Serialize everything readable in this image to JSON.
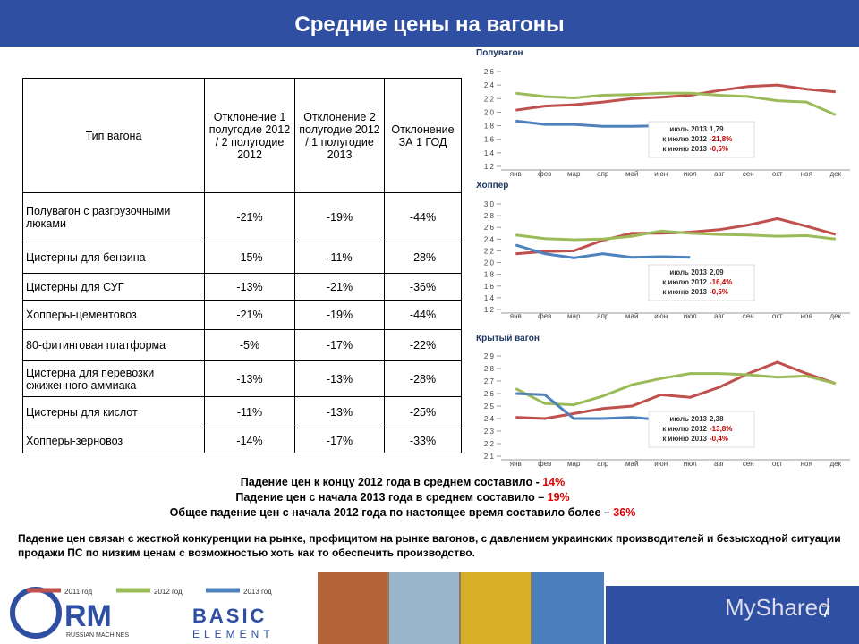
{
  "header": {
    "title": "Средние цены на вагоны"
  },
  "table": {
    "header": [
      "Тип вагона",
      "Отклонение 1 полугодие 2012 / 2 полугодие 2012",
      "Отклонение 2 полугодие 2012 / 1 полугодие 2013",
      "Отклонение ЗА 1 ГОД"
    ],
    "rows": [
      [
        "Полувагон с разгрузочными люками",
        "-21%",
        "-19%",
        "-44%"
      ],
      [
        "Цистерны для бензина",
        "-15%",
        "-11%",
        "-28%"
      ],
      [
        "Цистерны для СУГ",
        "-13%",
        "-21%",
        "-36%"
      ],
      [
        "Хопперы-цементовоз",
        "-21%",
        "-19%",
        "-44%"
      ],
      [
        "80-фитинговая платформа",
        "-5%",
        "-17%",
        "-22%"
      ],
      [
        "Цистерна для перевозки сжиженного аммиака",
        "-13%",
        "-13%",
        "-28%"
      ],
      [
        "Цистерны для кислот",
        "-11%",
        "-13%",
        "-25%"
      ],
      [
        "Хопперы-зерновоз",
        "-14%",
        "-17%",
        "-33%"
      ]
    ]
  },
  "chart_data": [
    {
      "type": "line",
      "title": "Полувагон",
      "categories": [
        "янв",
        "фев",
        "мар",
        "апр",
        "май",
        "июн",
        "июл",
        "авг",
        "сен",
        "окт",
        "ноя",
        "дек"
      ],
      "ylim": [
        1.2,
        2.6
      ],
      "yticks": [
        {
          "value": 1.2,
          "label": "1,2"
        },
        {
          "value": 1.4,
          "label": "1,4"
        },
        {
          "value": 1.6,
          "label": "1,6"
        },
        {
          "value": 1.8,
          "label": "1,8"
        },
        {
          "value": 2.0,
          "label": "2,0"
        },
        {
          "value": 2.2,
          "label": "2,2"
        },
        {
          "value": 2.4,
          "label": "2,4"
        },
        {
          "value": 2.6,
          "label": "2,6"
        }
      ],
      "series": [
        {
          "name": "2011 год",
          "color": "#c0504d",
          "values": [
            2.03,
            2.09,
            2.11,
            2.15,
            2.2,
            2.22,
            2.25,
            2.32,
            2.38,
            2.4,
            2.34,
            2.3
          ]
        },
        {
          "name": "2012 год",
          "color": "#9bbb59",
          "values": [
            2.28,
            2.23,
            2.21,
            2.25,
            2.26,
            2.28,
            2.28,
            2.25,
            2.23,
            2.17,
            2.15,
            1.96
          ]
        },
        {
          "name": "2013 год",
          "color": "#4f81bd",
          "values": [
            1.87,
            1.82,
            1.82,
            1.79,
            1.79,
            1.8,
            1.79,
            null,
            null,
            null,
            null,
            null
          ]
        }
      ],
      "annotations": [
        {
          "text": "июль 2013",
          "value": "1,79"
        },
        {
          "text": "к июлю 2012",
          "value": "-21,8%"
        },
        {
          "text": "к июню 2013",
          "value": "-0,5%"
        }
      ]
    },
    {
      "type": "line",
      "title": "Хоппер",
      "categories": [
        "янв",
        "фев",
        "мар",
        "апр",
        "май",
        "июн",
        "июл",
        "авг",
        "сен",
        "окт",
        "ноя",
        "дек"
      ],
      "ylim": [
        1.2,
        3.0
      ],
      "yticks": [
        {
          "value": 1.2,
          "label": "1,2"
        },
        {
          "value": 1.4,
          "label": "1,4"
        },
        {
          "value": 1.6,
          "label": "1,6"
        },
        {
          "value": 1.8,
          "label": "1,8"
        },
        {
          "value": 2.0,
          "label": "2,0"
        },
        {
          "value": 2.2,
          "label": "2,2"
        },
        {
          "value": 2.4,
          "label": "2,4"
        },
        {
          "value": 2.6,
          "label": "2,6"
        },
        {
          "value": 2.8,
          "label": "2,8"
        },
        {
          "value": 3.0,
          "label": "3,0"
        }
      ],
      "series": [
        {
          "color": "#c0504d",
          "values": [
            2.15,
            2.19,
            2.2,
            2.38,
            2.5,
            2.5,
            2.52,
            2.56,
            2.64,
            2.75,
            2.62,
            2.48
          ]
        },
        {
          "color": "#9bbb59",
          "values": [
            2.47,
            2.41,
            2.39,
            2.4,
            2.45,
            2.54,
            2.5,
            2.48,
            2.47,
            2.45,
            2.46,
            2.4
          ]
        },
        {
          "color": "#4f81bd",
          "values": [
            2.3,
            2.15,
            2.08,
            2.15,
            2.09,
            2.1,
            2.09,
            null,
            null,
            null,
            null,
            null
          ]
        }
      ],
      "annotations": [
        {
          "text": "июль 2013",
          "value": "2,09"
        },
        {
          "text": "к июлю 2012",
          "value": "-16,4%"
        },
        {
          "text": "к июню 2013",
          "value": "-0,5%"
        }
      ]
    },
    {
      "type": "line",
      "title": "Крытый вагон",
      "categories": [
        "янв",
        "фев",
        "мар",
        "апр",
        "май",
        "июн",
        "июл",
        "авг",
        "сен",
        "окт",
        "ноя",
        "дек"
      ],
      "ylim": [
        2.1,
        2.9
      ],
      "yticks": [
        {
          "value": 2.1,
          "label": "2,1"
        },
        {
          "value": 2.2,
          "label": "2,2"
        },
        {
          "value": 2.3,
          "label": "2,3"
        },
        {
          "value": 2.4,
          "label": "2,4"
        },
        {
          "value": 2.5,
          "label": "2,5"
        },
        {
          "value": 2.6,
          "label": "2,6"
        },
        {
          "value": 2.7,
          "label": "2,7"
        },
        {
          "value": 2.8,
          "label": "2,8"
        },
        {
          "value": 2.9,
          "label": "2,9"
        }
      ],
      "series": [
        {
          "color": "#c0504d",
          "values": [
            2.41,
            2.4,
            2.44,
            2.48,
            2.5,
            2.59,
            2.57,
            2.65,
            2.76,
            2.85,
            2.76,
            2.68
          ]
        },
        {
          "color": "#9bbb59",
          "values": [
            2.64,
            2.52,
            2.51,
            2.58,
            2.67,
            2.72,
            2.76,
            2.76,
            2.75,
            2.73,
            2.74,
            2.68
          ]
        },
        {
          "color": "#4f81bd",
          "values": [
            2.6,
            2.59,
            2.4,
            2.4,
            2.41,
            2.39,
            2.38,
            null,
            null,
            null,
            null,
            null
          ]
        }
      ],
      "annotations": [
        {
          "text": "июль 2013",
          "value": "2,38"
        },
        {
          "text": "к июлю 2012",
          "value": "-13,8%"
        },
        {
          "text": "к июню 2013",
          "value": "-0,4%"
        }
      ]
    }
  ],
  "summary": [
    {
      "text": "Падение цен к концу  2012 года в среднем составило - ",
      "highlight": "14%"
    },
    {
      "text": "Падение цен с начала 2013 года в среднем составило – ",
      "highlight": "19%"
    },
    {
      "text": "Общее падение цен с начала 2012 года по настоящее время составило более – ",
      "highlight": "36%"
    }
  ],
  "note": "Падение цен связан с жесткой конкуренции на рынке, профицитом на рынке вагонов, с давлением украинских производителей и безысходной ситуации продажи ПС по низким ценам с возможностью хоть как то обеспечить производство.",
  "footer": {
    "logo1": "RM",
    "logo1_sub": "RUSSIAN MACHINES",
    "logo2": "BASIC",
    "logo2_sub": "ELEMENT",
    "watermark": "MyShared",
    "page": "7"
  }
}
